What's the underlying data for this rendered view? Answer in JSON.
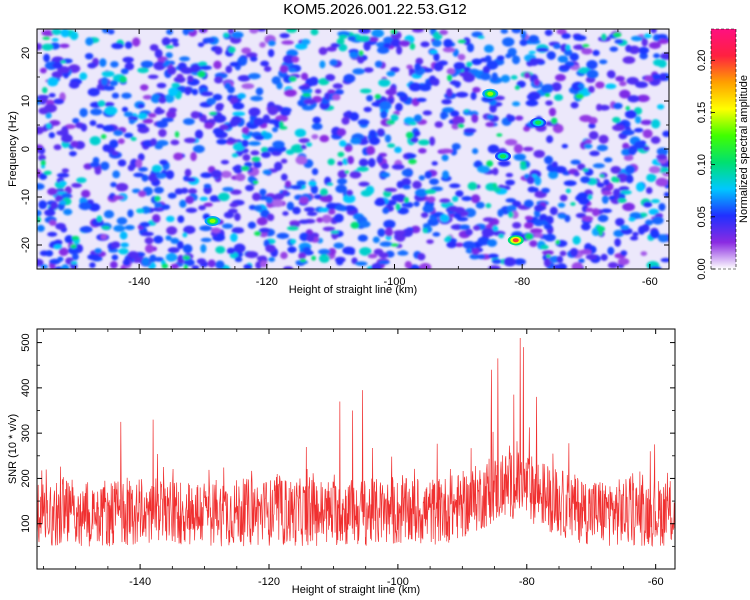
{
  "title": "KOM5.2026.001.22.53.G12",
  "chart_data": [
    {
      "type": "heatmap",
      "xlabel": "Height of straight line (km)",
      "ylabel": "Frequency (Hz)",
      "xlim": [
        -156,
        -57
      ],
      "ylim": [
        -25,
        25
      ],
      "x_ticks": [
        -140,
        -120,
        -100,
        -80,
        -60
      ],
      "y_ticks": [
        -20,
        -10,
        0,
        10,
        20
      ],
      "colorbar": {
        "label": "Normalized spectral amplitude",
        "range": [
          0,
          0.23
        ],
        "ticks": [
          0.0,
          0.05,
          0.1,
          0.15,
          0.2
        ],
        "tick_labels": [
          "0.00",
          "0.05",
          "0.10",
          "0.15",
          "0.20"
        ],
        "colors": [
          "#ffffff",
          "#8a2be2",
          "#2030ff",
          "#00c8ff",
          "#00e070",
          "#40ff00",
          "#ffff00",
          "#ffa000",
          "#ff2040",
          "#ff1080"
        ]
      },
      "peaks": [
        {
          "x": -81,
          "y": -19,
          "value": 0.2
        },
        {
          "x": -128.5,
          "y": -15,
          "value": 0.14
        },
        {
          "x": -85,
          "y": 11.5,
          "value": 0.14
        },
        {
          "x": -83,
          "y": -1.5,
          "value": 0.11
        },
        {
          "x": -77.5,
          "y": 5.5,
          "value": 0.11
        }
      ]
    },
    {
      "type": "line",
      "xlabel": "Height of straight line (km)",
      "ylabel": "SNR (10 * v/v)",
      "xlim": [
        -156,
        -57
      ],
      "ylim": [
        0,
        530
      ],
      "x_ticks": [
        -140,
        -120,
        -100,
        -80,
        -60
      ],
      "y_ticks": [
        100,
        200,
        300,
        400,
        500
      ],
      "color": "#f03030",
      "baseline_mean": 125,
      "noise_band": [
        40,
        280
      ],
      "notable_peaks": [
        {
          "x": -81,
          "y": 510
        },
        {
          "x": -80.5,
          "y": 490
        },
        {
          "x": -84.5,
          "y": 465
        },
        {
          "x": -85.5,
          "y": 440
        },
        {
          "x": -105.5,
          "y": 395
        },
        {
          "x": -82,
          "y": 385
        },
        {
          "x": -78.5,
          "y": 380
        },
        {
          "x": -109,
          "y": 370
        },
        {
          "x": -107,
          "y": 350
        },
        {
          "x": -138,
          "y": 330
        },
        {
          "x": -143,
          "y": 325
        }
      ]
    }
  ]
}
